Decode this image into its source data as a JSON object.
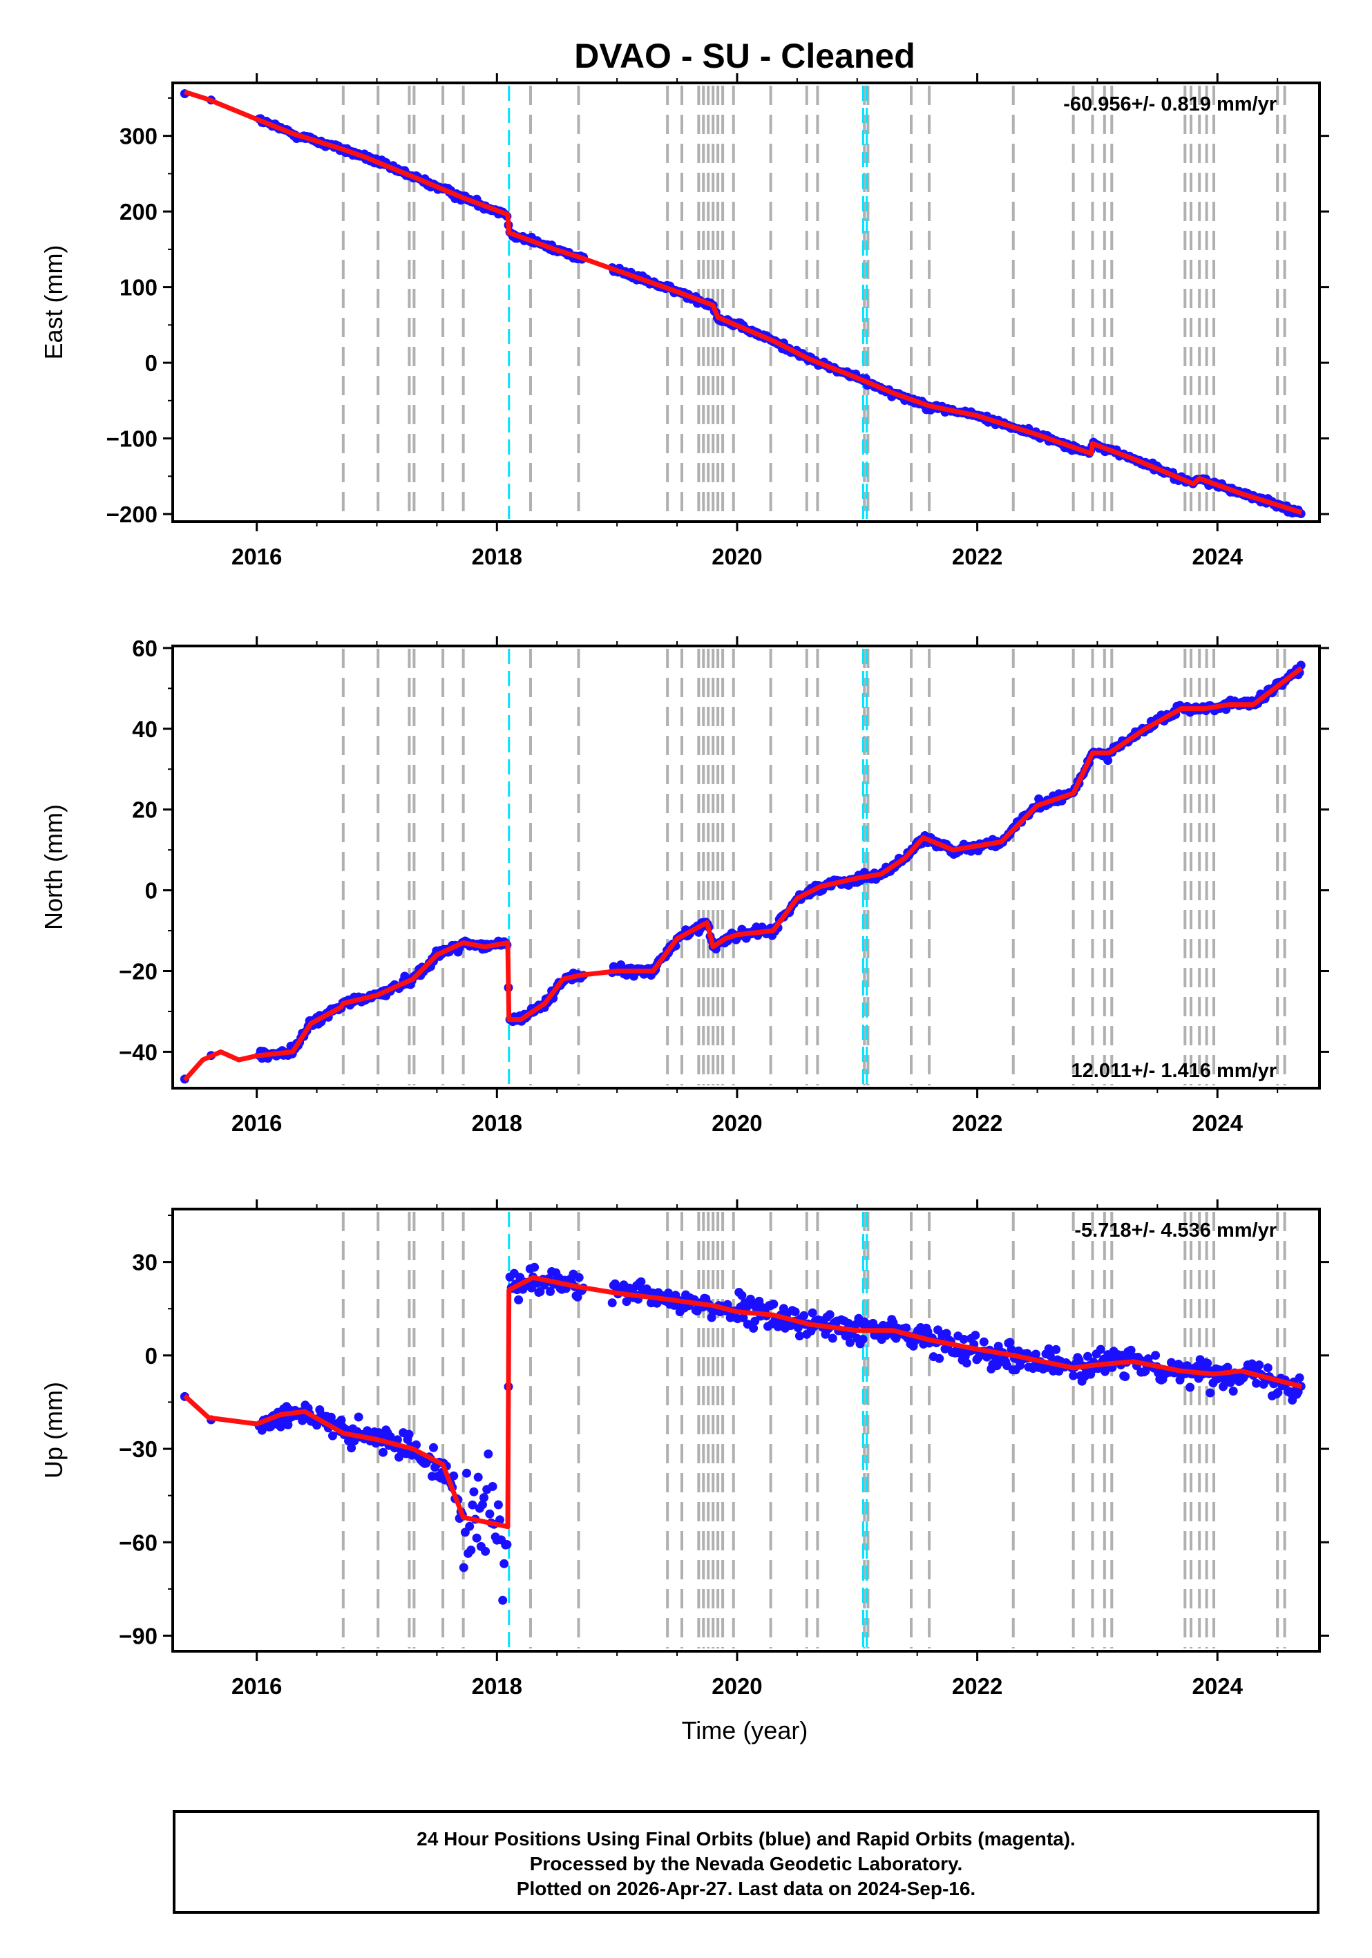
{
  "chart_data": {
    "type": "scatter",
    "title": "DVAO  - SU - Cleaned",
    "xlabel": "Time (year)",
    "xlim": [
      2015.3,
      2024.85
    ],
    "xticks": [
      2016,
      2018,
      2020,
      2022,
      2024
    ],
    "xtick_labels": [
      "2016",
      "2018",
      "2020",
      "2022",
      "2024"
    ],
    "colors": {
      "points": "#1a10ff",
      "model": "#ff1010",
      "event_line": "#b0b0b0",
      "antenna_line": "#00e5ff"
    },
    "event_lines": [
      2016.72,
      2017.01,
      2017.27,
      2017.31,
      2017.55,
      2017.72,
      2018.28,
      2018.68,
      2019.42,
      2019.54,
      2019.68,
      2019.72,
      2019.76,
      2019.8,
      2019.84,
      2019.88,
      2019.97,
      2020.28,
      2020.58,
      2020.67,
      2021.06,
      2021.09,
      2021.45,
      2021.6,
      2022.3,
      2022.8,
      2022.96,
      2023.06,
      2023.12,
      2023.73,
      2023.78,
      2023.85,
      2023.91,
      2023.97,
      2024.5,
      2024.56
    ],
    "antenna_lines": [
      2018.1,
      2021.05,
      2021.08
    ],
    "panels": [
      {
        "name": "east",
        "ylabel": "East (mm)",
        "ylim": [
          -210,
          370
        ],
        "yticks": [
          -200,
          -100,
          0,
          100,
          200,
          300
        ],
        "ytick_labels": [
          "−200",
          "−100",
          "0",
          "100",
          "200",
          "300"
        ],
        "rate_text": "-60.956+/- 0.819 mm/yr",
        "rate_position": "top-right",
        "model": {
          "x": [
            2015.4,
            2015.6,
            2016.0,
            2016.3,
            2016.72,
            2016.9,
            2017.3,
            2017.72,
            2018.09,
            2018.1,
            2018.5,
            2018.68,
            2019.0,
            2019.5,
            2019.8,
            2019.84,
            2020.3,
            2020.6,
            2021.0,
            2021.3,
            2021.6,
            2022.0,
            2022.5,
            2022.95,
            2022.96,
            2023.3,
            2023.8,
            2023.85,
            2024.2,
            2024.7
          ],
          "y": [
            358,
            348,
            322,
            303,
            282,
            272,
            246,
            218,
            196,
            172,
            149,
            140,
            122,
            94,
            76,
            60,
            29,
            5,
            -20,
            -40,
            -57,
            -70,
            -95,
            -120,
            -107,
            -127,
            -160,
            -153,
            -173,
            -198
          ]
        },
        "noise": 5
      },
      {
        "name": "north",
        "ylabel": "North (mm)",
        "ylim": [
          -49,
          60.5
        ],
        "yticks": [
          -40,
          -20,
          0,
          20,
          40,
          60
        ],
        "ytick_labels": [
          "−40",
          "−20",
          "0",
          "20",
          "40",
          "60"
        ],
        "rate_text": "12.011+/- 1.416 mm/yr",
        "rate_position": "bottom-right",
        "model": {
          "x": [
            2015.4,
            2015.55,
            2015.7,
            2015.85,
            2016.0,
            2016.3,
            2016.45,
            2016.7,
            2016.72,
            2017.0,
            2017.3,
            2017.5,
            2017.72,
            2017.9,
            2018.09,
            2018.1,
            2018.2,
            2018.4,
            2018.55,
            2018.7,
            2019.0,
            2019.3,
            2019.5,
            2019.75,
            2019.8,
            2019.9,
            2020.0,
            2020.3,
            2020.5,
            2020.7,
            2021.0,
            2021.2,
            2021.4,
            2021.55,
            2021.8,
            2022.2,
            2022.5,
            2022.8,
            2022.96,
            2023.1,
            2023.4,
            2023.7,
            2023.9,
            2024.1,
            2024.3,
            2024.7
          ],
          "y": [
            -47,
            -42,
            -40,
            -42,
            -41,
            -40,
            -33,
            -29,
            -28,
            -26,
            -22,
            -16,
            -13,
            -14,
            -13,
            -32,
            -32,
            -28,
            -22,
            -21,
            -20,
            -20,
            -12,
            -8,
            -14,
            -12,
            -11,
            -10,
            -2,
            1,
            3,
            4,
            8,
            13,
            10,
            12,
            21,
            24,
            34,
            34,
            40,
            45,
            45,
            46,
            46,
            55
          ]
        },
        "noise": 1.3
      },
      {
        "name": "up",
        "ylabel": "Up (mm)",
        "ylim": [
          -95,
          47
        ],
        "yticks": [
          -90,
          -60,
          -30,
          0,
          30
        ],
        "ytick_labels": [
          "−90",
          "−60",
          "−30",
          "0",
          "30"
        ],
        "rate_text": "-5.718+/- 4.536 mm/yr",
        "rate_position": "top-right",
        "model": {
          "x": [
            2015.4,
            2015.6,
            2016.0,
            2016.2,
            2016.4,
            2016.72,
            2017.0,
            2017.3,
            2017.55,
            2017.72,
            2018.09,
            2018.1,
            2018.3,
            2018.68,
            2019.0,
            2019.42,
            2019.8,
            2020.0,
            2020.3,
            2020.6,
            2021.0,
            2021.3,
            2021.6,
            2022.0,
            2022.3,
            2022.8,
            2023.0,
            2023.3,
            2023.7,
            2023.97,
            2024.2,
            2024.7
          ],
          "y": [
            -13,
            -20,
            -22,
            -19,
            -18,
            -25,
            -27,
            -30,
            -35,
            -52,
            -55,
            21,
            25,
            22,
            20,
            18,
            16,
            14,
            13,
            10,
            8,
            8,
            5,
            2,
            0,
            -4,
            -3,
            -2,
            -5,
            -6,
            -5,
            -10
          ]
        },
        "noise": 5
      }
    ]
  },
  "footer": {
    "line1": "24 Hour Positions Using Final Orbits (blue) and Rapid Orbits (magenta).",
    "line2": "Processed by the Nevada Geodetic Laboratory.",
    "line3": "Plotted on 2026-Apr-27. Last data on 2024-Sep-16."
  }
}
